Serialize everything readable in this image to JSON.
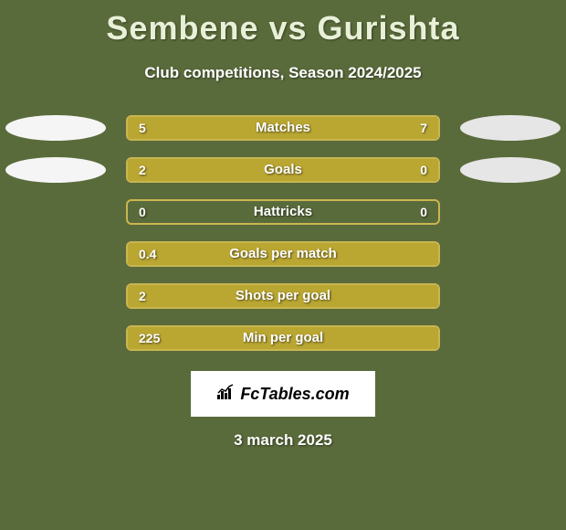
{
  "title": "Sembene vs Gurishta",
  "subtitle": "Club competitions, Season 2024/2025",
  "date": "3 march 2025",
  "logo_text": "FcTables.com",
  "colors": {
    "background": "#5a6b3b",
    "bar_border": "#c9b650",
    "bar_fill": "#baa732",
    "ellipse_left": "#f5f5f5",
    "ellipse_right": "#e6e6e6",
    "title_color": "#e8f0d8",
    "text_color": "#ffffff",
    "logo_bg": "#ffffff",
    "logo_text": "#000000"
  },
  "rows": [
    {
      "label": "Matches",
      "left_value": "5",
      "right_value": "7",
      "left_pct": 39,
      "right_pct": 61,
      "show_ellipses": true
    },
    {
      "label": "Goals",
      "left_value": "2",
      "right_value": "0",
      "left_pct": 76,
      "right_pct": 24,
      "show_ellipses": true
    },
    {
      "label": "Hattricks",
      "left_value": "0",
      "right_value": "0",
      "left_pct": 0,
      "right_pct": 0,
      "show_ellipses": false
    },
    {
      "label": "Goals per match",
      "left_value": "0.4",
      "right_value": "",
      "left_pct": 100,
      "right_pct": 0,
      "show_ellipses": false
    },
    {
      "label": "Shots per goal",
      "left_value": "2",
      "right_value": "",
      "left_pct": 100,
      "right_pct": 0,
      "show_ellipses": false
    },
    {
      "label": "Min per goal",
      "left_value": "225",
      "right_value": "",
      "left_pct": 100,
      "right_pct": 0,
      "show_ellipses": false
    }
  ]
}
